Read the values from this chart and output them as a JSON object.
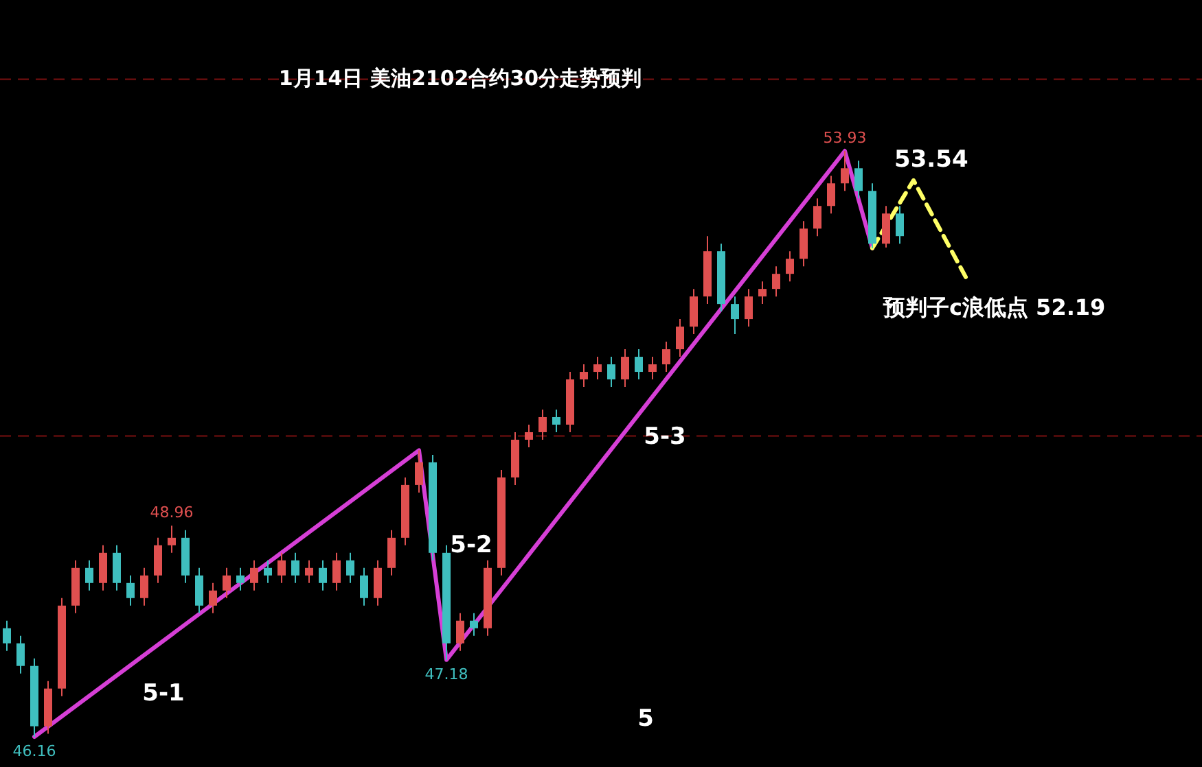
{
  "chart_data": {
    "type": "candlestick",
    "title": "1月14日 美油2102合约30分走势预判",
    "categories": [
      null,
      null,
      null,
      null,
      null,
      null,
      null,
      null,
      null,
      null,
      null,
      null,
      null,
      null,
      null,
      null,
      null,
      null,
      null,
      null,
      null,
      null,
      null,
      null,
      null,
      null,
      null,
      null,
      null,
      null,
      null,
      null,
      null,
      null,
      null,
      null,
      null,
      null,
      null,
      null,
      null,
      null,
      null,
      null,
      null,
      null,
      null,
      null,
      null,
      null,
      null,
      null,
      null,
      null,
      null,
      null,
      null,
      null,
      null,
      null,
      null,
      null,
      null,
      null,
      null,
      null,
      null,
      null,
      null,
      null,
      null
    ],
    "ohlc": [
      [
        47.6,
        47.7,
        47.3,
        47.4
      ],
      [
        47.4,
        47.5,
        47.0,
        47.1
      ],
      [
        47.1,
        47.2,
        46.16,
        46.3
      ],
      [
        46.3,
        46.9,
        46.2,
        46.8
      ],
      [
        46.8,
        48.0,
        46.7,
        47.9
      ],
      [
        47.9,
        48.5,
        47.8,
        48.4
      ],
      [
        48.4,
        48.5,
        48.1,
        48.2
      ],
      [
        48.2,
        48.7,
        48.1,
        48.6
      ],
      [
        48.6,
        48.7,
        48.1,
        48.2
      ],
      [
        48.2,
        48.3,
        47.9,
        48.0
      ],
      [
        48.0,
        48.4,
        47.9,
        48.3
      ],
      [
        48.3,
        48.8,
        48.2,
        48.7
      ],
      [
        48.7,
        48.96,
        48.6,
        48.8
      ],
      [
        48.8,
        48.9,
        48.2,
        48.3
      ],
      [
        48.3,
        48.4,
        47.8,
        47.9
      ],
      [
        47.9,
        48.2,
        47.8,
        48.1
      ],
      [
        48.1,
        48.4,
        48.0,
        48.3
      ],
      [
        48.3,
        48.4,
        48.1,
        48.2
      ],
      [
        48.2,
        48.5,
        48.1,
        48.4
      ],
      [
        48.4,
        48.5,
        48.2,
        48.3
      ],
      [
        48.3,
        48.6,
        48.2,
        48.5
      ],
      [
        48.5,
        48.6,
        48.2,
        48.3
      ],
      [
        48.3,
        48.5,
        48.2,
        48.4
      ],
      [
        48.4,
        48.5,
        48.1,
        48.2
      ],
      [
        48.2,
        48.6,
        48.1,
        48.5
      ],
      [
        48.5,
        48.6,
        48.2,
        48.3
      ],
      [
        48.3,
        48.4,
        47.9,
        48.0
      ],
      [
        48.0,
        48.5,
        47.9,
        48.4
      ],
      [
        48.4,
        48.9,
        48.3,
        48.8
      ],
      [
        48.8,
        49.6,
        48.7,
        49.5
      ],
      [
        49.5,
        49.96,
        49.4,
        49.8
      ],
      [
        49.8,
        49.9,
        48.5,
        48.6
      ],
      [
        48.6,
        48.7,
        47.18,
        47.4
      ],
      [
        47.4,
        47.8,
        47.3,
        47.7
      ],
      [
        47.7,
        47.8,
        47.5,
        47.6
      ],
      [
        47.6,
        48.5,
        47.5,
        48.4
      ],
      [
        48.4,
        49.7,
        48.3,
        49.6
      ],
      [
        49.6,
        50.2,
        49.5,
        50.1
      ],
      [
        50.1,
        50.3,
        50.0,
        50.2
      ],
      [
        50.2,
        50.5,
        50.1,
        50.4
      ],
      [
        50.4,
        50.5,
        50.2,
        50.3
      ],
      [
        50.3,
        51.0,
        50.2,
        50.9
      ],
      [
        50.9,
        51.1,
        50.8,
        51.0
      ],
      [
        51.0,
        51.2,
        50.9,
        51.1
      ],
      [
        51.1,
        51.2,
        50.8,
        50.9
      ],
      [
        50.9,
        51.3,
        50.8,
        51.2
      ],
      [
        51.2,
        51.3,
        50.9,
        51.0
      ],
      [
        51.0,
        51.2,
        50.9,
        51.1
      ],
      [
        51.1,
        51.4,
        51.0,
        51.3
      ],
      [
        51.3,
        51.7,
        51.2,
        51.6
      ],
      [
        51.6,
        52.1,
        51.5,
        52.0
      ],
      [
        52.0,
        52.8,
        51.9,
        52.6
      ],
      [
        52.6,
        52.7,
        51.8,
        51.9
      ],
      [
        51.9,
        52.0,
        51.5,
        51.7
      ],
      [
        51.7,
        52.1,
        51.6,
        52.0
      ],
      [
        52.0,
        52.2,
        51.9,
        52.1
      ],
      [
        52.1,
        52.4,
        52.0,
        52.3
      ],
      [
        52.3,
        52.6,
        52.2,
        52.5
      ],
      [
        52.5,
        53.0,
        52.4,
        52.9
      ],
      [
        52.9,
        53.3,
        52.8,
        53.2
      ],
      [
        53.2,
        53.6,
        53.1,
        53.5
      ],
      [
        53.5,
        53.93,
        53.4,
        53.7
      ],
      [
        53.7,
        53.8,
        53.3,
        53.4
      ],
      [
        53.4,
        53.5,
        52.64,
        52.7
      ],
      [
        52.7,
        53.2,
        52.65,
        53.1
      ],
      [
        53.1,
        53.2,
        52.7,
        52.8
      ],
      null,
      null,
      null,
      null,
      null
    ],
    "ref_lines": [
      {
        "axis": "y",
        "value": 54.88,
        "color": "#7a1010",
        "line_style": "dashed"
      },
      {
        "axis": "y",
        "value": 50.15,
        "color": "#7a1010",
        "line_style": "dashed"
      }
    ],
    "series": [
      {
        "type": "line",
        "color": "#d63fd6",
        "line_style": "solid",
        "values": [
          null,
          null,
          46.16,
          null,
          null,
          null,
          null,
          null,
          null,
          null,
          null,
          null,
          null,
          null,
          null,
          null,
          null,
          null,
          null,
          null,
          null,
          null,
          null,
          null,
          null,
          null,
          null,
          null,
          null,
          null,
          49.96,
          null,
          47.18,
          null,
          null,
          null,
          null,
          null,
          null,
          null,
          null,
          null,
          null,
          null,
          null,
          null,
          null,
          null,
          null,
          null,
          null,
          null,
          null,
          null,
          null,
          null,
          null,
          null,
          null,
          null,
          null,
          53.93,
          null,
          52.64,
          null,
          null,
          null,
          null,
          null,
          null,
          null
        ]
      },
      {
        "type": "line",
        "color": "#ffff66",
        "line_style": "dashed",
        "values": [
          null,
          null,
          null,
          null,
          null,
          null,
          null,
          null,
          null,
          null,
          null,
          null,
          null,
          null,
          null,
          null,
          null,
          null,
          null,
          null,
          null,
          null,
          null,
          null,
          null,
          null,
          null,
          null,
          null,
          null,
          null,
          null,
          null,
          null,
          null,
          null,
          null,
          null,
          null,
          null,
          null,
          null,
          null,
          null,
          null,
          null,
          null,
          null,
          null,
          null,
          null,
          null,
          null,
          null,
          null,
          null,
          null,
          null,
          null,
          null,
          null,
          null,
          null,
          52.64,
          null,
          null,
          53.54,
          null,
          null,
          null,
          52.19
        ]
      }
    ],
    "annotations": [
      {
        "text": "53.93",
        "y": 53.93
      },
      {
        "text": "48.96",
        "y": 48.96
      },
      {
        "text": "47.18",
        "y": 47.18
      },
      {
        "text": "46.16",
        "y": 46.16
      },
      "5-1",
      "5-2",
      "5-3",
      "5",
      "53.54",
      "预判子c浪低点 52.19"
    ]
  }
}
